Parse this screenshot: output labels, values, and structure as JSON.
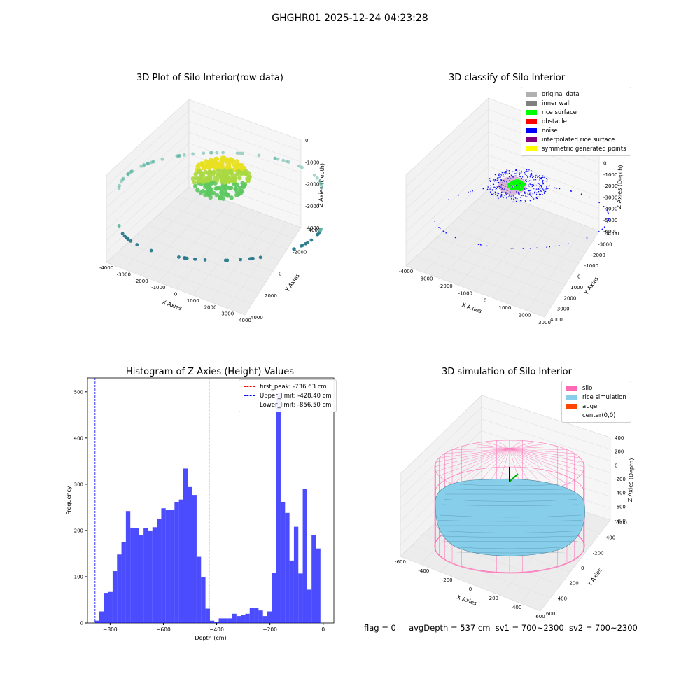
{
  "suptitle": "GHGHR01 2025-12-24 04:23:28",
  "footer": {
    "flag": "flag = 0",
    "avg_depth": "avgDepth = 537 cm",
    "sv1": "sv1 = 700~2300",
    "sv2": "sv2 = 700~2300"
  },
  "panels": {
    "raw": {
      "title": "3D Plot of Silo Interior(row data)",
      "xlabel": "X Axies",
      "ylabel": "Y Axies",
      "zlabel": "Z Axies (Depth)",
      "xticks": [
        "-4000",
        "-3000",
        "-2000",
        "-1000",
        "0",
        "1000",
        "2000",
        "3000",
        "4000"
      ],
      "yticks": [
        "-4000",
        "-2000",
        "0",
        "2000",
        "4000"
      ],
      "zticks": [
        "0",
        "-1000",
        "-2000",
        "-3000",
        "-4000"
      ]
    },
    "classify": {
      "title": "3D classify of Silo Interior",
      "xlabel": "X Axies",
      "ylabel": "Y Axies",
      "zlabel": "Z Axies (Depth)",
      "xticks": [
        "-4000",
        "-3000",
        "-2000",
        "-1000",
        "0",
        "1000",
        "2000",
        "3000"
      ],
      "yticks": [
        "-4000",
        "-3000",
        "-2000",
        "-1000",
        "0",
        "1000",
        "2000",
        "3000",
        "4000"
      ],
      "zticks": [
        "2000",
        "1000",
        "0",
        "-1000",
        "-2000",
        "-3000",
        "-4000",
        "-5000",
        "-6000"
      ],
      "legend": [
        {
          "label": "original data",
          "color": "#b0b0b0"
        },
        {
          "label": "inner wall",
          "color": "#808080"
        },
        {
          "label": "rice surface",
          "color": "#00ff00"
        },
        {
          "label": "obstacle",
          "color": "#ff0000"
        },
        {
          "label": "noise",
          "color": "#0000ff"
        },
        {
          "label": "interpolated rice surface",
          "color": "#800080"
        },
        {
          "label": "symmetric generated points",
          "color": "#ffff00"
        }
      ]
    },
    "simulation": {
      "title": "3D simulation of Silo Interior",
      "xlabel": "X Axies",
      "ylabel": "Y Axies",
      "zlabel": "Z Axies (Depth)",
      "xticks": [
        "-600",
        "-400",
        "-200",
        "0",
        "200",
        "400",
        "600"
      ],
      "yticks": [
        "-600",
        "-400",
        "-200",
        "0",
        "200",
        "400",
        "600"
      ],
      "zticks": [
        "400",
        "200",
        "0",
        "-200",
        "-400",
        "-600",
        "-800"
      ],
      "legend": [
        {
          "label": "silo",
          "color": "#ff69b4"
        },
        {
          "label": "rice simulation",
          "color": "#87ceeb"
        },
        {
          "label": "auger",
          "color": "#ff4500"
        },
        {
          "label": "center(0,0)",
          "color": ""
        }
      ]
    }
  },
  "chart_data": {
    "type": "bar",
    "title": "Histogram of Z-Axies (Height) Values",
    "xlabel": "Depth (cm)",
    "ylabel": "Frequency",
    "xlim": [
      -885,
      40
    ],
    "ylim": [
      0,
      530
    ],
    "xticks": [
      -800,
      -600,
      -400,
      -200,
      0
    ],
    "yticks": [
      0,
      100,
      200,
      300,
      400,
      500
    ],
    "bar_color": "#0000ff",
    "bin_start": -857,
    "bin_width": 16.6,
    "values": [
      5,
      25,
      65,
      67,
      112,
      148,
      175,
      242,
      206,
      205,
      190,
      205,
      200,
      207,
      225,
      248,
      245,
      245,
      262,
      267,
      334,
      294,
      277,
      143,
      100,
      31,
      5,
      3,
      10,
      10,
      10,
      20,
      15,
      17,
      20,
      33,
      32,
      27,
      15,
      25,
      108,
      497,
      262,
      238,
      135,
      208,
      107,
      290,
      72,
      190,
      161
    ],
    "vlines": [
      {
        "label": "first_peak: -736.63 cm",
        "x": -736.63,
        "color": "#ff0000"
      },
      {
        "label": "Upper_limit: -428.40 cm",
        "x": -428.4,
        "color": "#0000ff"
      },
      {
        "label": "Lower_limit: -856.50 cm",
        "x": -856.5,
        "color": "#0000ff"
      }
    ],
    "legend_position": "top-right"
  }
}
